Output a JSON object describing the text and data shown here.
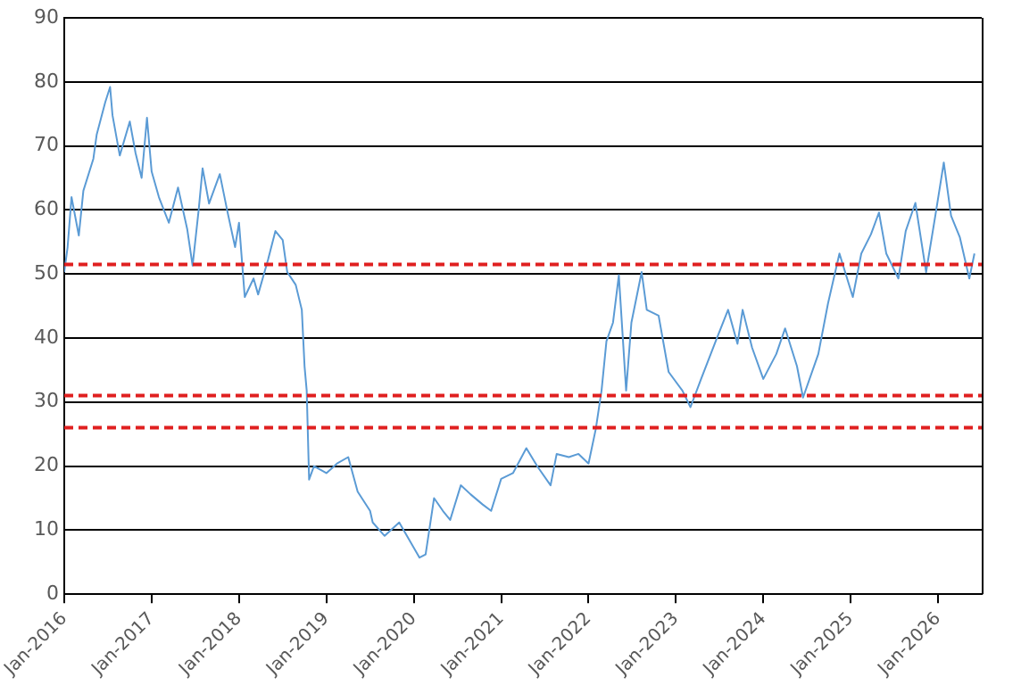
{
  "chart_data": {
    "type": "line",
    "x": [
      "2016-01",
      "2016-01-15",
      "2016-02",
      "2016-03",
      "2016-03-20",
      "2016-05",
      "2016-05-15",
      "2016-06-20",
      "2016-07-10",
      "2016-07-20",
      "2016-08-20",
      "2016-10",
      "2016-10-25",
      "2016-11-20",
      "2016-12-12",
      "2017-01",
      "2017-02",
      "2017-03-12",
      "2017-04-20",
      "2017-05-28",
      "2017-06-20",
      "2017-07-15",
      "2017-08",
      "2017-08-28",
      "2017-10-12",
      "2017-11-12",
      "2017-12-15",
      "2018-01",
      "2018-01-25",
      "2018-03",
      "2018-03-20",
      "2018-05",
      "2018-06",
      "2018-07",
      "2018-07-20",
      "2018-08-25",
      "2018-09-20",
      "2018-10",
      "2018-10-10",
      "2018-10-20",
      "2018-11-10",
      "2019-01",
      "2019-02-15",
      "2019-04",
      "2019-05-10",
      "2019-07",
      "2019-07-12",
      "2019-09",
      "2019-11",
      "2020-01-25",
      "2020-02-20",
      "2020-03-25",
      "2020-05",
      "2020-06",
      "2020-07-15",
      "2020-08-25",
      "2020-10-15",
      "2020-11-20",
      "2021-01",
      "2021-02-20",
      "2021-04-15",
      "2021-06",
      "2021-07-25",
      "2021-08-20",
      "2021-10-10",
      "2021-11-20",
      "2022-01",
      "2022-02",
      "2022-02-25",
      "2022-03-15",
      "2022-04-12",
      "2022-05-06",
      "2022-06-06",
      "2022-06-28",
      "2022-08-10",
      "2022-09",
      "2022-10-20",
      "2022-12",
      "2023-01-28",
      "2023-03",
      "2023-04-15",
      "2023-06-15",
      "2023-08-06",
      "2023-09-15",
      "2023-10-06",
      "2023-11-15",
      "2024-01",
      "2024-02-25",
      "2024-04",
      "2024-05-20",
      "2024-06-15",
      "2024-08-18",
      "2024-09-28",
      "2024-11-15",
      "2025-01-10",
      "2025-02-15",
      "2025-03-25",
      "2025-04-28",
      "2025-05-28",
      "2025-07-18",
      "2025-08-18",
      "2025-09-28",
      "2025-11-12",
      "2025-12-20",
      "2026-01-25",
      "2026-02-25",
      "2026-04",
      "2026-05-10",
      "2026-06"
    ],
    "series": [
      {
        "color": "#5b9bd5",
        "values": [
          50.3,
          54.2,
          62,
          56,
          63,
          68,
          71.8,
          76.8,
          79.2,
          74.8,
          68.5,
          73.8,
          68.9,
          65,
          74.4,
          66,
          62,
          58,
          63.5,
          57,
          51.3,
          60,
          66.5,
          61,
          65.6,
          60,
          54.2,
          58,
          46.4,
          49.3,
          46.8,
          52.3,
          56.7,
          55.3,
          50.3,
          48.3,
          44.4,
          35.6,
          31.8,
          17.9,
          20,
          18.9,
          20.4,
          21.4,
          16,
          13,
          11.2,
          9.1,
          11.2,
          5.7,
          6.2,
          15,
          13,
          11.6,
          17,
          15.6,
          14,
          13,
          18,
          18.9,
          22.8,
          19.9,
          17,
          21.9,
          21.4,
          21.9,
          20.4,
          25.8,
          31.8,
          39.5,
          42.4,
          49.8,
          31.8,
          42.4,
          50.3,
          44.4,
          43.5,
          34.7,
          31.8,
          29.2,
          33.6,
          39.5,
          44.4,
          39.1,
          44.4,
          38.5,
          33.6,
          37.5,
          41.5,
          35.6,
          30.7,
          37.5,
          45.4,
          53.2,
          46.4,
          53.2,
          56.2,
          59.6,
          53.2,
          49.3,
          56.7,
          61.1,
          50.3,
          59.1,
          67.4,
          59.1,
          55.7,
          49.3,
          53.2
        ]
      }
    ],
    "xlim": [
      "2016-01",
      "2026-07"
    ],
    "xticks": [
      {
        "value": "2016-01",
        "label": "Jan-2016"
      },
      {
        "value": "2017-01",
        "label": "Jan-2017"
      },
      {
        "value": "2018-01",
        "label": "Jan-2018"
      },
      {
        "value": "2019-01",
        "label": "Jan-2019"
      },
      {
        "value": "2020-01",
        "label": "Jan-2020"
      },
      {
        "value": "2021-01",
        "label": "Jan-2021"
      },
      {
        "value": "2022-01",
        "label": "Jan-2022"
      },
      {
        "value": "2023-01",
        "label": "Jan-2023"
      },
      {
        "value": "2024-01",
        "label": "Jan-2024"
      },
      {
        "value": "2025-01",
        "label": "Jan-2025"
      },
      {
        "value": "2026-01",
        "label": "Jan-2026"
      }
    ],
    "ylim": [
      0,
      90
    ],
    "yticks": [
      0,
      10,
      20,
      30,
      40,
      50,
      60,
      70,
      80,
      90
    ],
    "grid": "y",
    "ref_lines": [
      {
        "axis": "y",
        "value": 51.5,
        "color": "#e02020",
        "line_style": "dashed"
      },
      {
        "axis": "y",
        "value": 31,
        "color": "#e02020",
        "line_style": "dashed"
      },
      {
        "axis": "y",
        "value": 26,
        "color": "#e02020",
        "line_style": "dashed"
      }
    ],
    "legend": false,
    "marker": "none",
    "line_style": "solid"
  }
}
